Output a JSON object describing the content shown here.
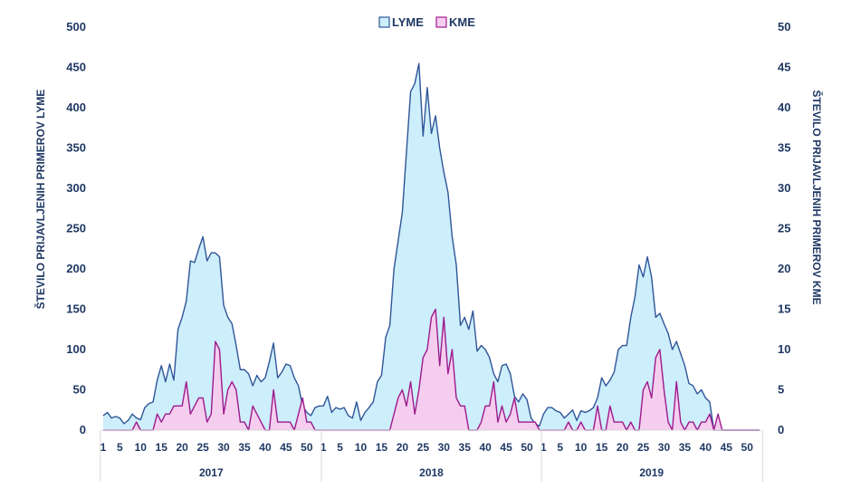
{
  "chart_data": {
    "type": "area",
    "y_left": {
      "label": "ŠTEVILO PRIJAVLJENIH PRIMEROV LYME",
      "min": 0,
      "max": 500,
      "ticks": [
        "0",
        "50",
        "100",
        "150",
        "200",
        "250",
        "300",
        "350",
        "400",
        "450",
        "500"
      ]
    },
    "y_right": {
      "label": "ŠTEVILO PRIJAVLJENIH PRIMEROV KME",
      "min": 0,
      "max": 50,
      "ticks": [
        "0",
        "5",
        "10",
        "15",
        "20",
        "25",
        "30",
        "35",
        "40",
        "45",
        "50"
      ]
    },
    "x_ticks": [
      "1",
      "5",
      "10",
      "15",
      "20",
      "25",
      "30",
      "35",
      "40",
      "45",
      "50"
    ],
    "years": [
      "2017",
      "2018",
      "2019"
    ],
    "weeks_per_year": 53,
    "legend": {
      "position": "top-center"
    },
    "series": [
      {
        "name": "LYME",
        "axis": "left",
        "color_line": "#2f5597",
        "color_fill": "#cdeefb",
        "values": [
          [
            18,
            22,
            15,
            17,
            15,
            8,
            12,
            20,
            15,
            13,
            28,
            33,
            35,
            62,
            80,
            60,
            82,
            62,
            125,
            140,
            160,
            210,
            208,
            225,
            240,
            210,
            220,
            220,
            215,
            155,
            140,
            132,
            105,
            75,
            75,
            70,
            55,
            68,
            60,
            65,
            85,
            108,
            65,
            72,
            82,
            80,
            65,
            55,
            30,
            22,
            18,
            28,
            30
          ],
          [
            30,
            42,
            22,
            28,
            26,
            28,
            18,
            15,
            35,
            12,
            22,
            28,
            35,
            60,
            68,
            115,
            130,
            200,
            235,
            270,
            345,
            420,
            430,
            455,
            365,
            425,
            368,
            390,
            350,
            320,
            295,
            240,
            205,
            130,
            140,
            125,
            148,
            98,
            105,
            100,
            90,
            70,
            60,
            80,
            82,
            70,
            42,
            35,
            45,
            38,
            15,
            8,
            5
          ],
          [
            20,
            28,
            28,
            24,
            22,
            15,
            20,
            25,
            12,
            24,
            22,
            24,
            28,
            40,
            65,
            55,
            62,
            72,
            100,
            105,
            105,
            140,
            165,
            205,
            190,
            215,
            190,
            140,
            145,
            132,
            120,
            100,
            110,
            95,
            80,
            58,
            55,
            45,
            50,
            40,
            35,
            0,
            0,
            0,
            0,
            0,
            0,
            0,
            0,
            0,
            0,
            0,
            0
          ]
        ]
      },
      {
        "name": "KME",
        "axis": "right",
        "color_line": "#9e1a8c",
        "color_fill": "#f5cdef",
        "values": [
          [
            0,
            0,
            0,
            0,
            0,
            0,
            0,
            0,
            1,
            0,
            0,
            0,
            0,
            2,
            1,
            2,
            2,
            3,
            3,
            3,
            6,
            2,
            3,
            4,
            4,
            1,
            2,
            11,
            10,
            2,
            5,
            6,
            5,
            1,
            1,
            0,
            3,
            2,
            1,
            0,
            0,
            5,
            1,
            1,
            1,
            1,
            0,
            2,
            4,
            1,
            1,
            0,
            0
          ],
          [
            0,
            0,
            0,
            0,
            0,
            0,
            0,
            0,
            0,
            0,
            0,
            0,
            0,
            0,
            0,
            0,
            0,
            2,
            4,
            5,
            3,
            6,
            2,
            5,
            9,
            10,
            14,
            15,
            8,
            14,
            7,
            10,
            4,
            3,
            3,
            0,
            0,
            0,
            1,
            3,
            3,
            6,
            1,
            3,
            1,
            2,
            4,
            1,
            1,
            1,
            1,
            1,
            0
          ],
          [
            0,
            0,
            0,
            0,
            0,
            0,
            1,
            0,
            0,
            1,
            0,
            0,
            0,
            3,
            0,
            0,
            3,
            1,
            1,
            1,
            0,
            1,
            0,
            0,
            5,
            6,
            4,
            9,
            10,
            5,
            1,
            0,
            6,
            1,
            0,
            1,
            1,
            0,
            1,
            1,
            2,
            0,
            2,
            0,
            0,
            0,
            0,
            0,
            0,
            0,
            0,
            0,
            0
          ]
        ]
      }
    ]
  }
}
